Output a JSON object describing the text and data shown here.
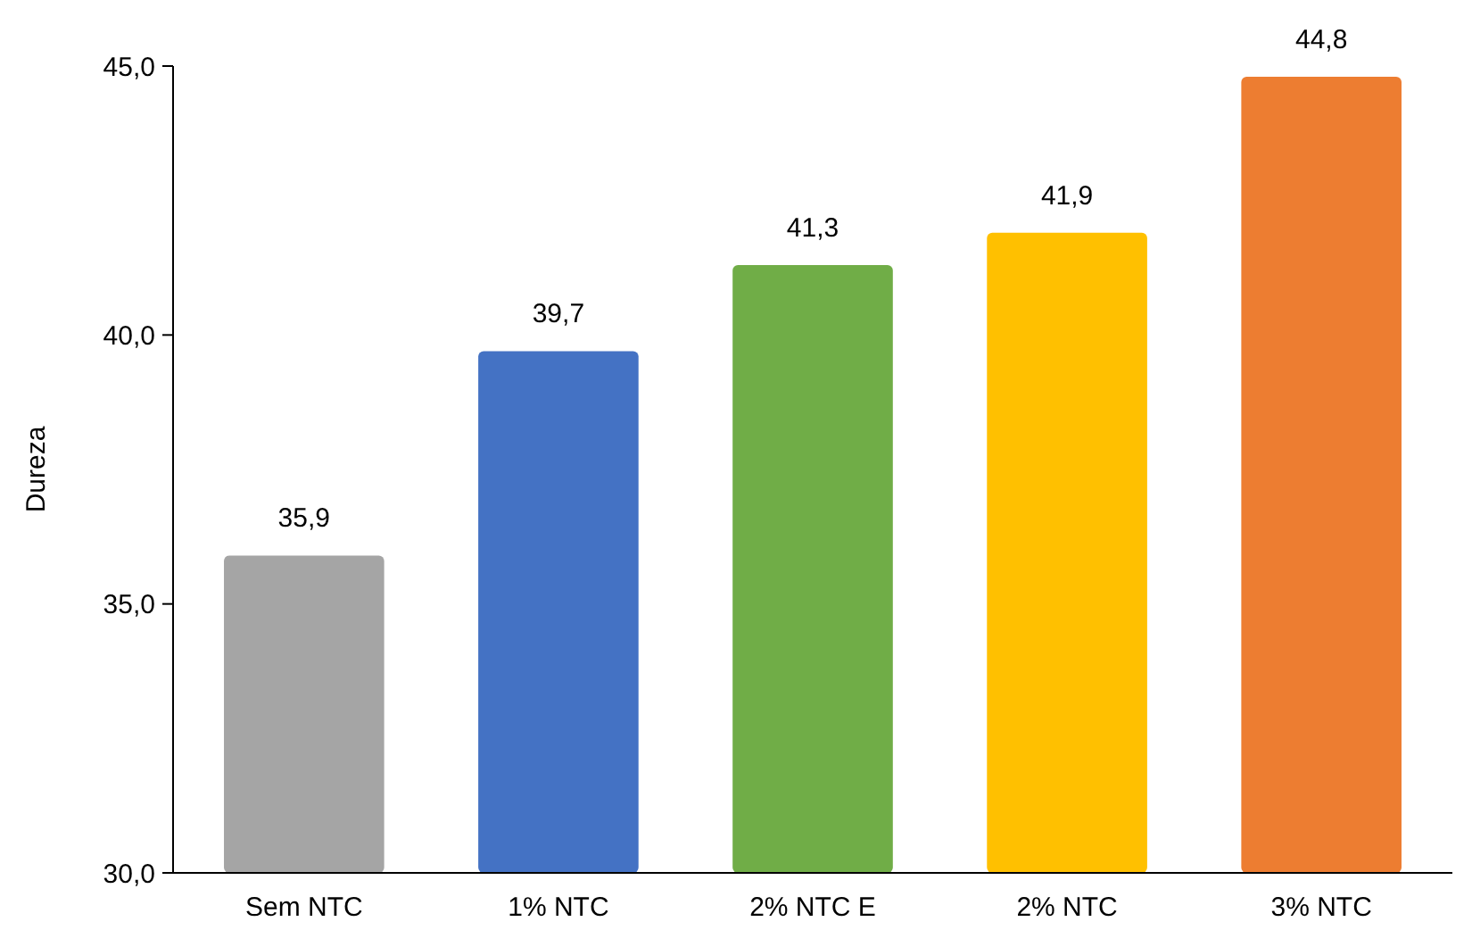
{
  "chart_data": {
    "type": "bar",
    "ylabel": "Dureza",
    "categories": [
      "Sem NTC",
      "1% NTC",
      "2% NTC E",
      "2% NTC",
      "3% NTC"
    ],
    "values": [
      35.9,
      39.7,
      41.3,
      41.9,
      44.8
    ],
    "colors": [
      "#a5a5a5",
      "#4472c4",
      "#70ad47",
      "#ffc000",
      "#ed7d31"
    ],
    "value_labels": [
      "35,9",
      "39,7",
      "41,3",
      "41,9",
      "44,8"
    ],
    "ylim": [
      30,
      45
    ],
    "yticks": [
      {
        "value": 30,
        "label": "30,0"
      },
      {
        "value": 35,
        "label": "35,0"
      },
      {
        "value": 40,
        "label": "40,0"
      },
      {
        "value": 45,
        "label": "45,0"
      }
    ],
    "grid": false
  }
}
